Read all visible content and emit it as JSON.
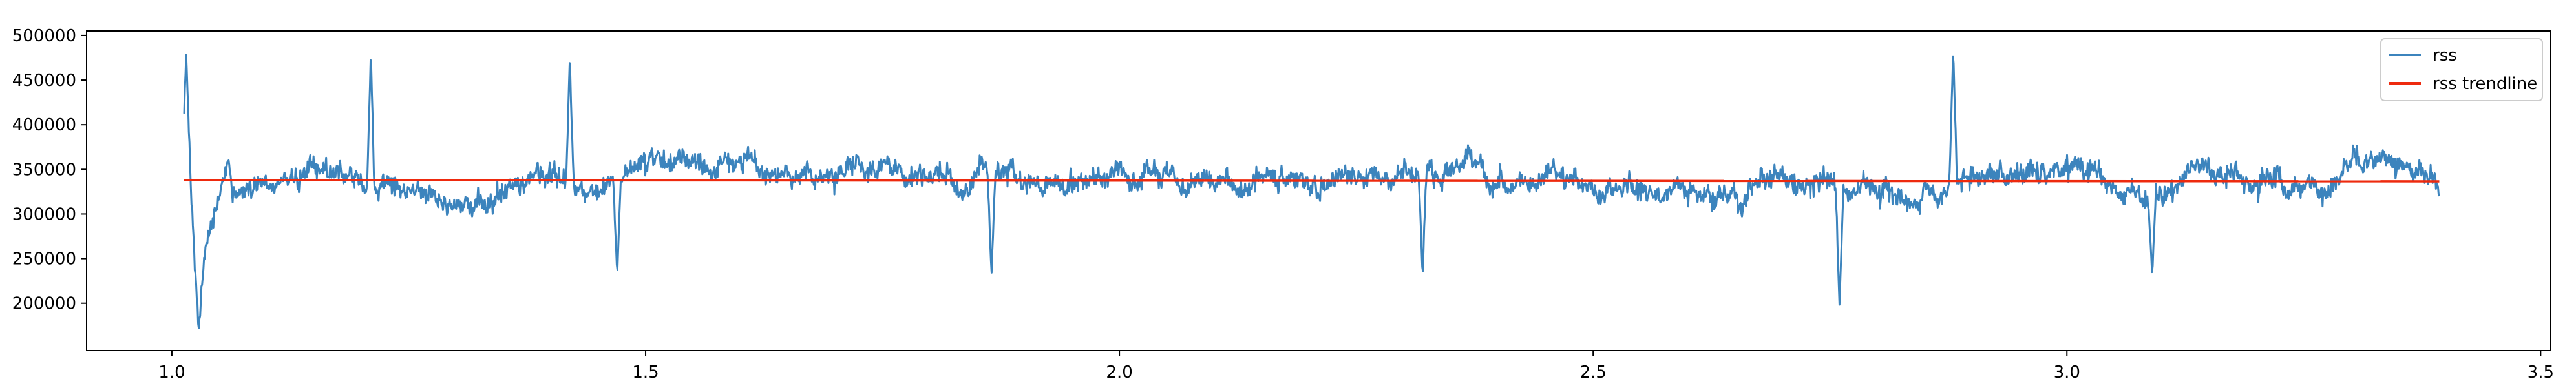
{
  "chart_data": {
    "type": "line",
    "title": "",
    "xlabel": "",
    "ylabel": "",
    "xlim": [
      0.91,
      3.51
    ],
    "ylim": [
      147000,
      505000
    ],
    "x_ticks": [
      1.0,
      1.5,
      2.0,
      2.5,
      3.0,
      3.5
    ],
    "x_tick_labels": [
      "1.0",
      "1.5",
      "2.0",
      "2.5",
      "3.0",
      "3.5"
    ],
    "y_ticks": [
      200000,
      250000,
      300000,
      350000,
      400000,
      450000,
      500000
    ],
    "y_tick_labels": [
      "200000",
      "250000",
      "300000",
      "350000",
      "400000",
      "450000",
      "500000"
    ],
    "grid": false,
    "legend_position": "top-right",
    "series": [
      {
        "name": "rss",
        "kind": "noisy-line",
        "color": "#3c84bd",
        "x_range": [
          1.013,
          3.393
        ],
        "approx_mean": 337000,
        "min": 172000,
        "max": 486000,
        "key_points": [
          {
            "x": 1.013,
            "y": 415000
          },
          {
            "x": 1.015,
            "y": 486000
          },
          {
            "x": 1.02,
            "y": 330000
          },
          {
            "x": 1.028,
            "y": 172000
          },
          {
            "x": 1.035,
            "y": 260000
          },
          {
            "x": 1.06,
            "y": 360000
          },
          {
            "x": 1.21,
            "y": 482000
          },
          {
            "x": 1.42,
            "y": 475000
          },
          {
            "x": 1.47,
            "y": 232000
          },
          {
            "x": 1.865,
            "y": 230000
          },
          {
            "x": 2.32,
            "y": 228000
          },
          {
            "x": 2.76,
            "y": 198000
          },
          {
            "x": 2.88,
            "y": 486000
          },
          {
            "x": 3.09,
            "y": 230000
          },
          {
            "x": 3.393,
            "y": 320000
          }
        ]
      },
      {
        "name": "rss trendline",
        "kind": "line",
        "color": "#ee2a0e",
        "x": [
          1.013,
          3.393
        ],
        "y": [
          338000,
          336500
        ]
      }
    ]
  },
  "legend": {
    "items": [
      {
        "label": "rss",
        "color": "#3c84bd"
      },
      {
        "label": "rss trendline",
        "color": "#ee2a0e"
      }
    ]
  }
}
